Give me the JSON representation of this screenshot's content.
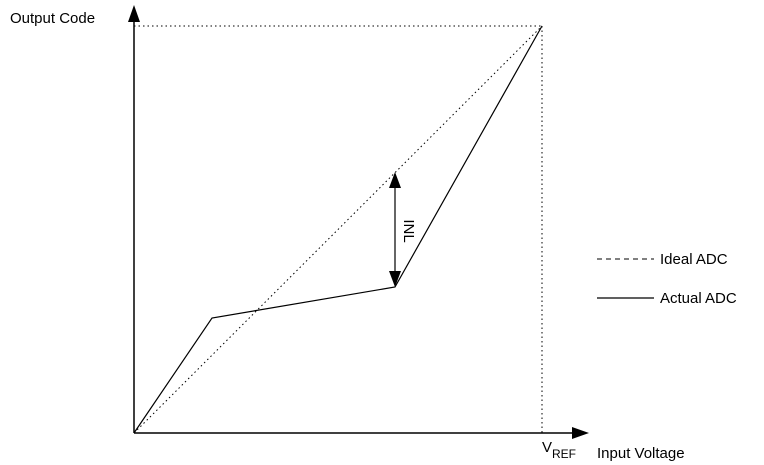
{
  "diagram": {
    "y_axis_label": "Output Code",
    "x_axis_label": "Input Voltage",
    "vref_label": {
      "main": "V",
      "sub": "REF"
    },
    "inl_label": "INL",
    "legend": {
      "ideal_label": "Ideal ADC",
      "actual_label": "Actual ADC"
    }
  }
}
